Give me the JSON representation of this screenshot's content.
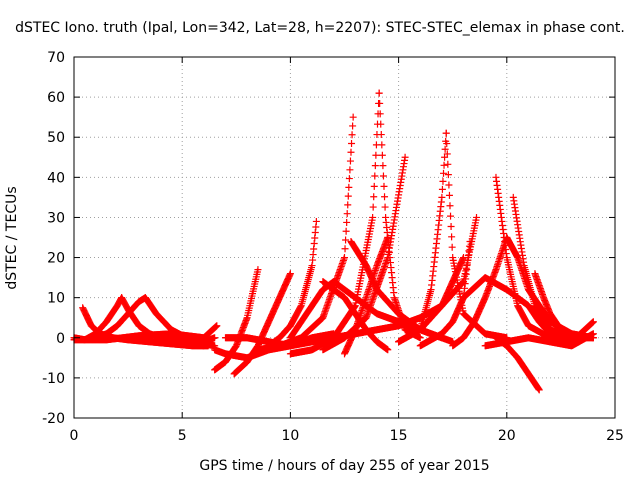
{
  "chart_data": {
    "type": "scatter",
    "title": "dSTEC Iono. truth (Ipal, Lon=342, Lat=28, h=2207): STEC-STEC_elemax in phase cont.",
    "xlabel": "GPS time / hours of day 255 of year 2015",
    "ylabel": "dSTEC  / TECUs",
    "xlim": [
      0,
      25
    ],
    "ylim": [
      -20,
      70
    ],
    "x_ticks": [
      "0",
      "5",
      "10",
      "15",
      "20",
      "25"
    ],
    "y_ticks": [
      "-20",
      "-10",
      "0",
      "10",
      "20",
      "30",
      "40",
      "50",
      "60",
      "70"
    ],
    "grid": true,
    "marker": "+",
    "color": "#ff0000",
    "series": [
      {
        "x": [
          0.0,
          0.5,
          1.0,
          1.5,
          2.0,
          2.2
        ],
        "y": [
          0,
          -0.5,
          1,
          4,
          8,
          10
        ]
      },
      {
        "x": [
          2.2,
          2.5,
          3.0,
          3.5,
          4.0,
          4.5,
          5.0,
          5.5,
          6.0
        ],
        "y": [
          10,
          7,
          3,
          1,
          0,
          -0.5,
          -1,
          -1.5,
          -2
        ]
      },
      {
        "x": [
          0.4,
          0.8,
          1.2,
          1.8,
          2.5,
          3.5,
          4.5,
          5.5,
          6.2
        ],
        "y": [
          7.5,
          3,
          1,
          0,
          -0.5,
          -1,
          -1.5,
          -2,
          -2
        ]
      },
      {
        "x": [
          1.0,
          1.5,
          2.0,
          2.5,
          3.0,
          3.3
        ],
        "y": [
          0,
          1,
          3,
          6,
          9,
          10
        ]
      },
      {
        "x": [
          3.3,
          3.8,
          4.5,
          5.2,
          6.0,
          6.5
        ],
        "y": [
          10,
          6,
          2,
          0,
          -1.5,
          -2
        ]
      },
      {
        "x": [
          0.0,
          1.5,
          3.0,
          4.5,
          6.0,
          6.6
        ],
        "y": [
          -0.5,
          -0.5,
          0.5,
          1,
          0,
          3
        ]
      },
      {
        "x": [
          6.5,
          7.0,
          7.5,
          8.0,
          8.5
        ],
        "y": [
          -8,
          -6,
          -2,
          5,
          17
        ]
      },
      {
        "x": [
          7.4,
          8.0,
          8.5,
          9.0,
          9.5,
          10.0
        ],
        "y": [
          -9,
          -6,
          -2,
          4,
          10,
          16
        ]
      },
      {
        "x": [
          9.0,
          9.5,
          10.0,
          10.5,
          11.0,
          11.2
        ],
        "y": [
          -2,
          0,
          3,
          8,
          18,
          29
        ]
      },
      {
        "x": [
          8.5,
          9.5,
          10.5,
          11.5,
          12.5,
          12.9
        ],
        "y": [
          -3,
          -2,
          0,
          5,
          20,
          55
        ]
      },
      {
        "x": [
          10.0,
          11.0,
          12.0,
          13.0,
          13.8,
          14.1
        ],
        "y": [
          -4,
          -3,
          0,
          8,
          30,
          61
        ]
      },
      {
        "x": [
          14.1,
          14.4,
          14.8,
          15.3,
          16.0
        ],
        "y": [
          61,
          30,
          10,
          2,
          0
        ]
      },
      {
        "x": [
          11.5,
          12.5,
          13.5,
          14.5,
          15.3
        ],
        "y": [
          -3,
          0,
          5,
          20,
          45
        ]
      },
      {
        "x": [
          15.0,
          16.0,
          16.5,
          17.0,
          17.2
        ],
        "y": [
          -1,
          2,
          12,
          35,
          51
        ]
      },
      {
        "x": [
          17.2,
          17.5,
          18.0,
          19.0,
          20.0
        ],
        "y": [
          51,
          20,
          6,
          1,
          0
        ]
      },
      {
        "x": [
          19.5,
          20.0,
          20.5,
          21.0,
          22.0,
          23.5
        ],
        "y": [
          40,
          20,
          8,
          3,
          0,
          0
        ]
      },
      {
        "x": [
          20.3,
          20.8,
          21.3,
          22.0,
          23.0,
          24.0
        ],
        "y": [
          35,
          18,
          8,
          2,
          0,
          0
        ]
      },
      {
        "x": [
          21.3,
          21.7,
          22.0,
          22.5,
          23.0
        ],
        "y": [
          16,
          10,
          6,
          2,
          0
        ]
      },
      {
        "x": [
          19.5,
          20.0,
          20.5,
          21.0,
          21.5
        ],
        "y": [
          0,
          -2,
          -5,
          -9,
          -13
        ]
      },
      {
        "x": [
          12.5,
          13.0,
          13.5,
          14.0,
          14.5
        ],
        "y": [
          -4,
          2,
          10,
          18,
          25
        ]
      },
      {
        "x": [
          11.5,
          12.5,
          13.0,
          13.5,
          14.0,
          14.5
        ],
        "y": [
          14,
          10,
          6,
          2,
          -1,
          -3
        ]
      },
      {
        "x": [
          12.8,
          13.5,
          14.0,
          15.0,
          16.0,
          17.0,
          17.5
        ],
        "y": [
          24,
          18,
          12,
          6,
          2,
          0,
          -1
        ]
      },
      {
        "x": [
          15.0,
          16.0,
          17.0,
          18.0,
          18.6
        ],
        "y": [
          -1,
          2,
          8,
          14,
          30
        ]
      },
      {
        "x": [
          16.0,
          17.0,
          17.5,
          18.0,
          18.3
        ],
        "y": [
          -2,
          1,
          4,
          10,
          24
        ]
      },
      {
        "x": [
          17.5,
          18.0,
          18.5,
          19.0,
          19.5,
          20.0
        ],
        "y": [
          -2,
          0,
          4,
          10,
          17,
          25
        ]
      },
      {
        "x": [
          18.0,
          19.0,
          20.0,
          21.0,
          21.5,
          22.0,
          22.5,
          23.0,
          24.0
        ],
        "y": [
          10,
          15,
          12,
          8,
          4,
          1,
          0,
          -1,
          4
        ]
      },
      {
        "x": [
          10.0,
          11.0,
          11.5,
          12.0,
          13.0,
          14.0,
          15.0,
          16.0,
          17.0
        ],
        "y": [
          0,
          8,
          12,
          14,
          10,
          6,
          4,
          2,
          0
        ]
      },
      {
        "x": [
          7.0,
          8.0,
          9.0,
          10.0,
          11.0,
          12.0,
          13.0
        ],
        "y": [
          0,
          0,
          -1,
          -2,
          -1,
          0,
          1
        ]
      },
      {
        "x": [
          12.0,
          13.0,
          14.0,
          15.0,
          16.0,
          17.0,
          18.0
        ],
        "y": [
          0,
          1,
          2,
          3,
          5,
          8,
          20
        ]
      },
      {
        "x": [
          19.0,
          20.0,
          21.0,
          22.0,
          23.0,
          24.0
        ],
        "y": [
          -2,
          -1,
          0,
          -1,
          -2,
          1
        ]
      },
      {
        "x": [
          20.0,
          20.5,
          21.0,
          21.5,
          22.0,
          23.0,
          24.0
        ],
        "y": [
          25,
          20,
          12,
          8,
          4,
          1,
          0
        ]
      },
      {
        "x": [
          4.5,
          5.0,
          5.5,
          6.0,
          6.5
        ],
        "y": [
          0,
          -1,
          -1,
          -1,
          0
        ]
      },
      {
        "x": [
          6.5,
          7.0,
          8.0,
          9.0,
          10.0,
          11.0,
          12.0
        ],
        "y": [
          -3,
          -4,
          -5,
          -3,
          -2,
          0,
          1
        ]
      }
    ]
  }
}
